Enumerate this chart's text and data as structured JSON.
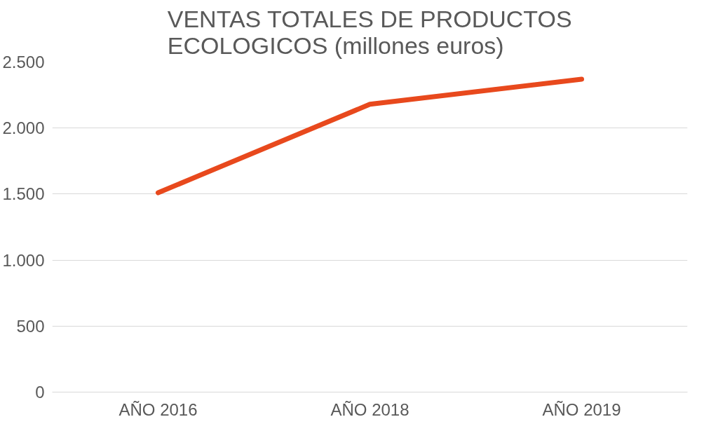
{
  "chart_data": {
    "type": "line",
    "title": "VENTAS TOTALES DE PRODUCTOS\nECOLOGICOS (millones euros)",
    "categories": [
      "AÑO 2016",
      "AÑO 2018",
      "AÑO 2019"
    ],
    "series": [
      {
        "color": "#e8491d",
        "values": [
          1510,
          2180,
          2370
        ]
      }
    ],
    "ylim": [
      0,
      2500
    ],
    "yticks": [
      0,
      500,
      {
        "value": 1000,
        "label": "1.000"
      },
      {
        "value": 1500,
        "label": "1.500"
      },
      {
        "value": 2000,
        "label": "2.000"
      },
      {
        "value": 2500,
        "label": "2.500"
      }
    ],
    "grid": "y",
    "marker": "none",
    "line_style": "solid"
  }
}
